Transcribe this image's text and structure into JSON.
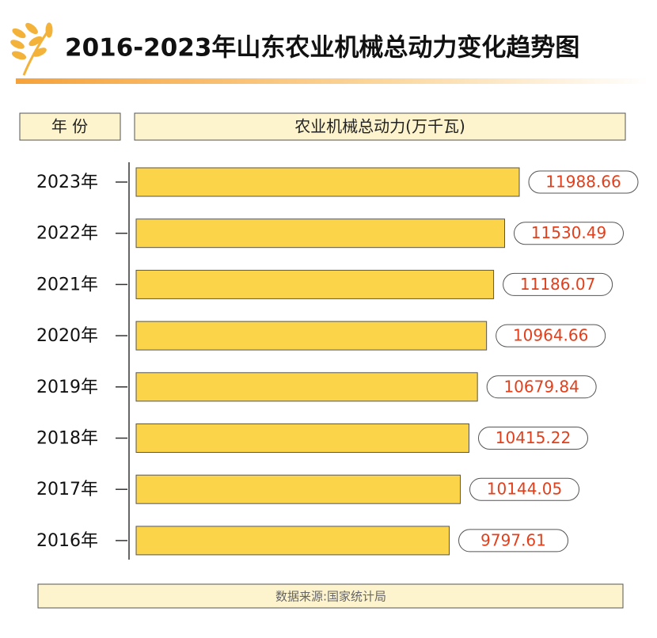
{
  "chart_data": {
    "type": "bar",
    "orientation": "horizontal",
    "title": "2016-2023年山东农业机械总动力变化趋势图",
    "category_header": "年 份",
    "value_header": "农业机械总动力(万千瓦)",
    "categories": [
      "2023年",
      "2022年",
      "2021年",
      "2020年",
      "2019年",
      "2018年",
      "2017年",
      "2016年"
    ],
    "values": [
      11988.66,
      11530.49,
      11186.07,
      10964.66,
      10679.84,
      10415.22,
      10144.05,
      9797.61
    ],
    "color": "#fbd44a",
    "label_color": "#e2401c",
    "source": "数据来源:国家统计局"
  }
}
